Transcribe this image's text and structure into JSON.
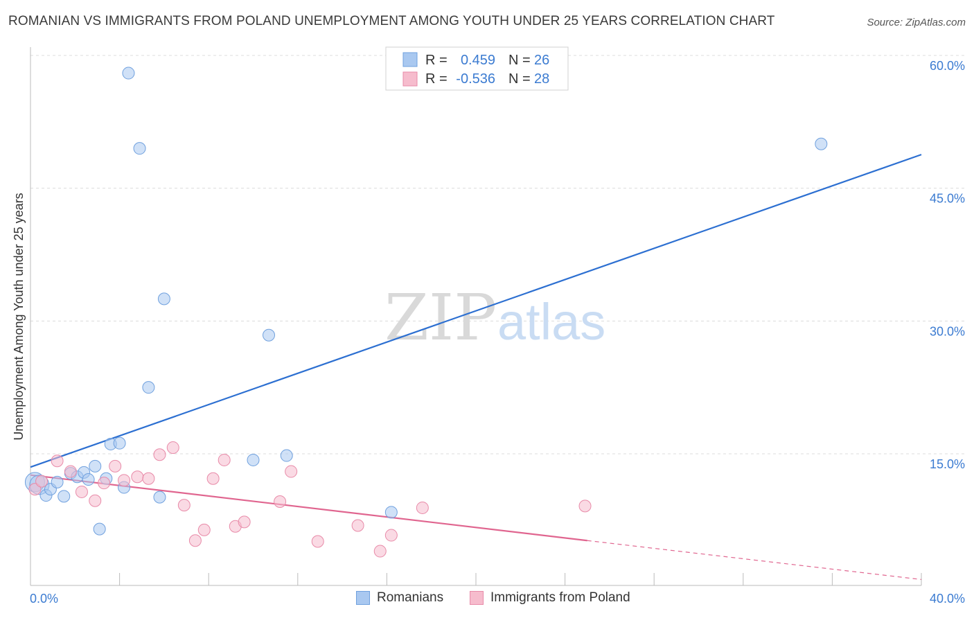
{
  "chart_data": {
    "type": "scatter",
    "title": "ROMANIAN VS IMMIGRANTS FROM POLAND UNEMPLOYMENT AMONG YOUTH UNDER 25 YEARS CORRELATION CHART",
    "source": "Source: ZipAtlas.com",
    "xlabel": "",
    "ylabel": "Unemployment Among Youth under 25 years",
    "xlim": [
      0,
      40
    ],
    "ylim": [
      0,
      62
    ],
    "x_tick_labels": {
      "left": "0.0%",
      "right": "40.0%"
    },
    "y_ticks": [
      {
        "value": 15,
        "label": "15.0%"
      },
      {
        "value": 30,
        "label": "30.0%"
      },
      {
        "value": 45,
        "label": "45.0%"
      },
      {
        "value": 60,
        "label": "60.0%"
      }
    ],
    "watermark": {
      "zip": "ZIP",
      "atlas": "atlas"
    },
    "colors": {
      "romanians_fill": "#a9c8f0",
      "romanians_stroke": "#6fa0de",
      "romanians_line": "#2c6fd1",
      "poland_fill": "#f6bccd",
      "poland_stroke": "#e88aa8",
      "poland_line": "#e0658f",
      "tick_text": "#3b7bd1"
    },
    "legend": {
      "entries": [
        {
          "series": "Romanians",
          "r_label": "R =",
          "r_value": "0.459",
          "n_label": "N =",
          "n_value": "26"
        },
        {
          "series": "Immigrants from Poland",
          "r_label": "R =",
          "r_value": "-0.536",
          "n_label": "N =",
          "n_value": "28"
        }
      ]
    },
    "series": [
      {
        "name": "Romanians",
        "points": [
          {
            "x": 0.2,
            "y": 11.8
          },
          {
            "x": 0.4,
            "y": 11.5
          },
          {
            "x": 0.7,
            "y": 10.3
          },
          {
            "x": 0.9,
            "y": 11.0
          },
          {
            "x": 1.2,
            "y": 11.8
          },
          {
            "x": 1.5,
            "y": 10.2
          },
          {
            "x": 1.8,
            "y": 12.8
          },
          {
            "x": 2.1,
            "y": 12.4
          },
          {
            "x": 2.4,
            "y": 12.9
          },
          {
            "x": 2.6,
            "y": 12.1
          },
          {
            "x": 2.9,
            "y": 13.6
          },
          {
            "x": 3.1,
            "y": 6.5
          },
          {
            "x": 3.4,
            "y": 12.2
          },
          {
            "x": 3.6,
            "y": 16.1
          },
          {
            "x": 4.0,
            "y": 16.2
          },
          {
            "x": 4.2,
            "y": 11.2
          },
          {
            "x": 4.4,
            "y": 58.0
          },
          {
            "x": 4.9,
            "y": 49.5
          },
          {
            "x": 5.3,
            "y": 22.5
          },
          {
            "x": 5.8,
            "y": 10.1
          },
          {
            "x": 6.0,
            "y": 32.5
          },
          {
            "x": 10.0,
            "y": 14.3
          },
          {
            "x": 10.7,
            "y": 28.4
          },
          {
            "x": 11.5,
            "y": 14.8
          },
          {
            "x": 16.2,
            "y": 8.4
          },
          {
            "x": 35.5,
            "y": 50.0
          }
        ],
        "trend": {
          "x0": 0,
          "y0": 13.5,
          "x1": 40,
          "y1": 48.8
        }
      },
      {
        "name": "Immigrants from Poland",
        "points": [
          {
            "x": 0.2,
            "y": 11.0
          },
          {
            "x": 0.5,
            "y": 11.9
          },
          {
            "x": 1.2,
            "y": 14.2
          },
          {
            "x": 1.8,
            "y": 13.0
          },
          {
            "x": 2.3,
            "y": 10.7
          },
          {
            "x": 2.9,
            "y": 9.7
          },
          {
            "x": 3.3,
            "y": 11.7
          },
          {
            "x": 3.8,
            "y": 13.6
          },
          {
            "x": 4.2,
            "y": 12.0
          },
          {
            "x": 4.8,
            "y": 12.4
          },
          {
            "x": 5.3,
            "y": 12.2
          },
          {
            "x": 5.8,
            "y": 14.9
          },
          {
            "x": 6.4,
            "y": 15.7
          },
          {
            "x": 6.9,
            "y": 9.2
          },
          {
            "x": 7.4,
            "y": 5.2
          },
          {
            "x": 7.8,
            "y": 6.4
          },
          {
            "x": 8.2,
            "y": 12.2
          },
          {
            "x": 8.7,
            "y": 14.3
          },
          {
            "x": 9.2,
            "y": 6.8
          },
          {
            "x": 9.6,
            "y": 7.3
          },
          {
            "x": 11.2,
            "y": 9.6
          },
          {
            "x": 11.7,
            "y": 13.0
          },
          {
            "x": 12.9,
            "y": 5.1
          },
          {
            "x": 14.7,
            "y": 6.9
          },
          {
            "x": 15.7,
            "y": 4.0
          },
          {
            "x": 16.2,
            "y": 5.8
          },
          {
            "x": 17.6,
            "y": 8.9
          },
          {
            "x": 24.9,
            "y": 9.1
          }
        ],
        "trend": {
          "x0": 0,
          "y0": 12.6,
          "x1": 25,
          "y1": 5.2
        },
        "trend_extension": {
          "x0": 25,
          "y0": 5.2,
          "x1": 40,
          "y1": 0.8
        }
      }
    ]
  }
}
